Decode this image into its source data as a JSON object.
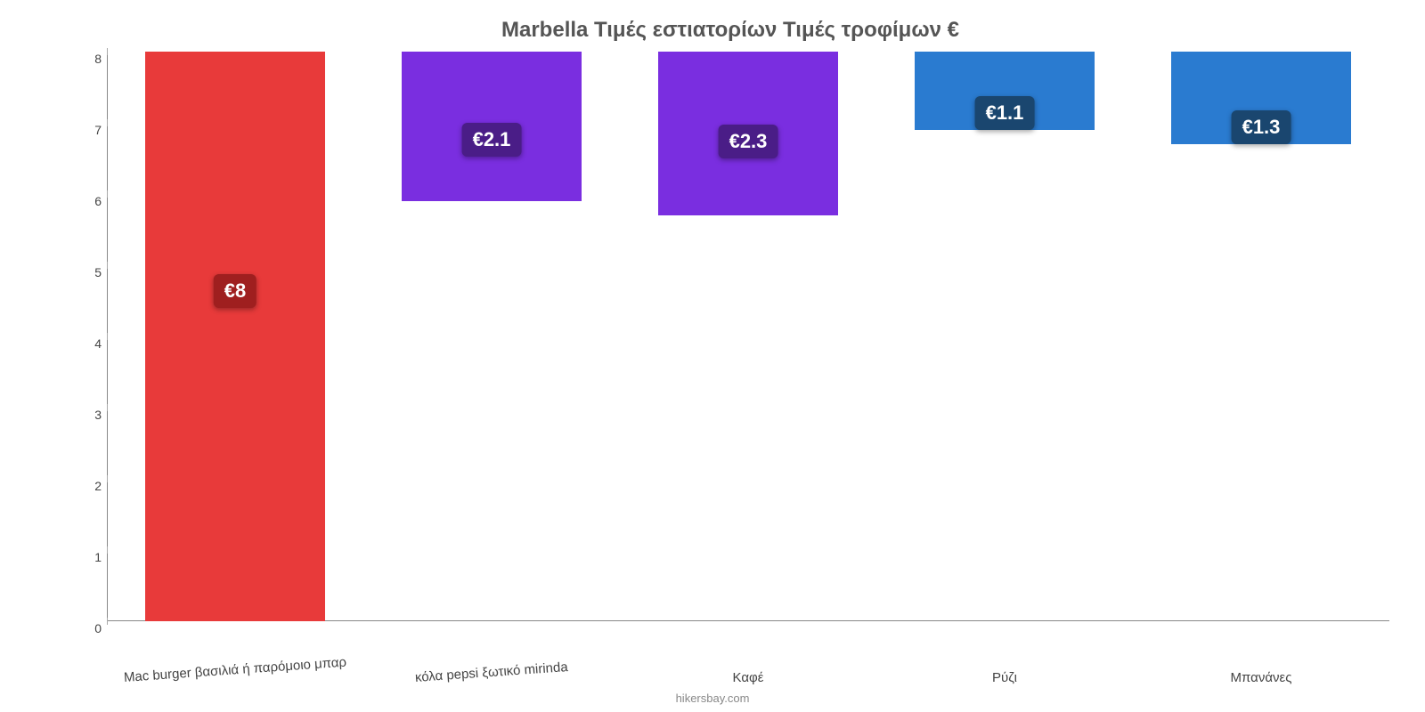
{
  "chart": {
    "type": "bar",
    "title": "Marbella Τιμές εστιατορίων Τιμές τροφίμων €",
    "title_fontsize": 24,
    "title_color": "#555555",
    "background_color": "#ffffff",
    "axis_color": "#888888",
    "ylim": [
      0,
      8
    ],
    "ytick_step": 1,
    "yticks": [
      "0",
      "1",
      "2",
      "3",
      "4",
      "5",
      "6",
      "7",
      "8"
    ],
    "bar_width_pct": 70,
    "bars": [
      {
        "category": "Mac burger βασιλιά ή παρόμοιο μπαρ",
        "value": 8.0,
        "display": "€8",
        "color": "#e83a3a",
        "label_bg": "#9f1f1f",
        "label_y_pct": 45
      },
      {
        "category": "κόλα pepsi ξωτικό mirinda",
        "value": 2.1,
        "display": "€2.1",
        "color": "#7a2ee0",
        "label_bg": "#4a1d87",
        "label_y_pct": 70
      },
      {
        "category": "Καφέ",
        "value": 2.3,
        "display": "€2.3",
        "color": "#7a2ee0",
        "label_bg": "#4a1d87",
        "label_y_pct": 65
      },
      {
        "category": "Ρύζι",
        "value": 1.1,
        "display": "€1.1",
        "color": "#2a7bd0",
        "label_bg": "#1a466f",
        "label_y_pct": 100
      },
      {
        "category": "Μπανάνες",
        "value": 1.3,
        "display": "€1.3",
        "color": "#2a7bd0",
        "label_bg": "#1a466f",
        "label_y_pct": 100
      }
    ],
    "attribution": "hikersbay.com",
    "attribution_color": "#888888",
    "label_fontsize": 22
  }
}
